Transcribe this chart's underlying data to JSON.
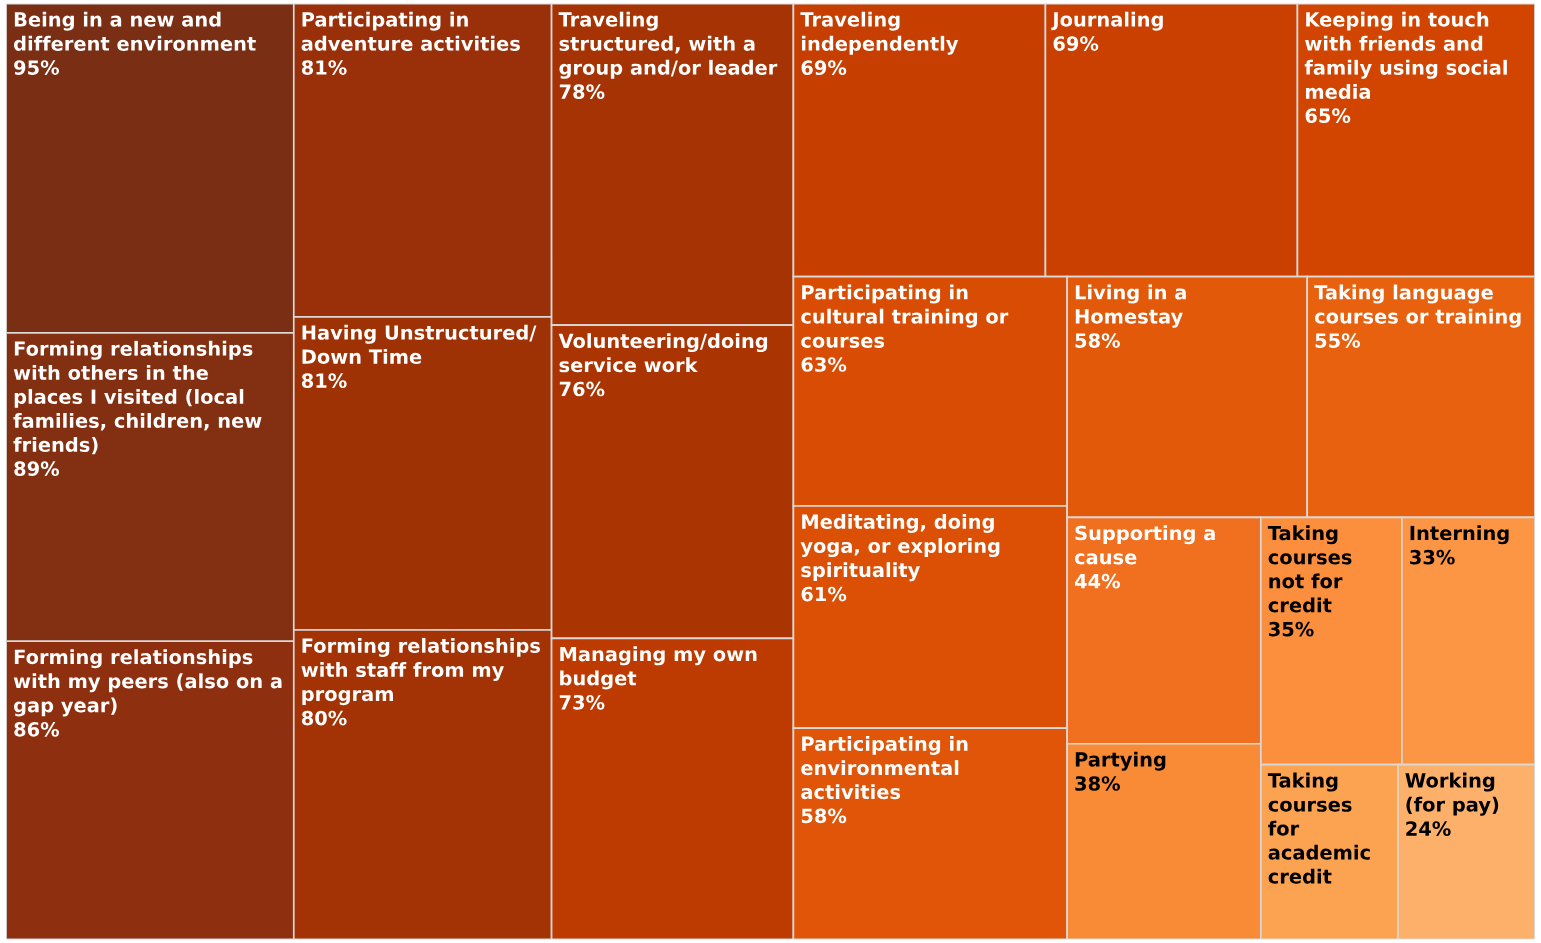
{
  "chart_data": {
    "type": "other",
    "categories": [
      "Being in a new and different environment",
      "Forming relationships with others in the places I visited (local families, children, new friends)",
      "Forming relationships with my peers (also on a gap year)",
      "Participating in adventure activities",
      "Having Unstructured/ Down Time",
      "Forming relationships with staff from my program",
      "Traveling structured, with a group and/or leader",
      "Volunteering/doing service work",
      "Managing my own budget",
      "Traveling independently",
      "Journaling",
      "Keeping in touch with friends and family using social media",
      "Participating in cultural training or courses",
      "Meditating, doing yoga, or exploring spirituality",
      "Participating in environmental activities",
      "Living in a Homestay",
      "Taking language courses or training",
      "Supporting a cause",
      "Partying",
      "Taking courses not for credit",
      "Interning",
      "Taking courses for academic credit",
      "Working (for pay)"
    ],
    "values": [
      95,
      89,
      86,
      81,
      81,
      80,
      78,
      76,
      73,
      69,
      69,
      65,
      63,
      61,
      58,
      58,
      55,
      44,
      38,
      35,
      33,
      null,
      24
    ],
    "value_labels": [
      "95%",
      "89%",
      "86%",
      "81%",
      "81%",
      "80%",
      "78%",
      "76%",
      "73%",
      "69%",
      "69%",
      "65%",
      "63%",
      "61%",
      "58%",
      "58%",
      "55%",
      "44%",
      "38%",
      "35%",
      "33%",
      null,
      "24%"
    ],
    "colors": [
      "#7a2e14",
      "#832f12",
      "#8e3010",
      "#9a300a",
      "#9e3205",
      "#a33304",
      "#a63303",
      "#ab3502",
      "#bd3a01",
      "#c63e00",
      "#c94000",
      "#d24500",
      "#d94c03",
      "#dc5006",
      "#e05508",
      "#e2590a",
      "#e8610f",
      "#f07020",
      "#f98a36",
      "#fb8f3d",
      "#fc9645",
      "#fca352",
      "#fdb06a"
    ]
  }
}
